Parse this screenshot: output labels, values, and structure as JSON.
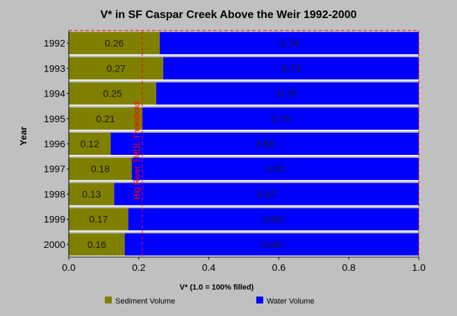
{
  "chart_data": {
    "type": "bar",
    "orientation": "horizontal",
    "stacked": true,
    "title": "V* in SF Caspar Creek Above the Weir 1992-2000",
    "xlabel": "V* (1.0 = 100% filled)",
    "ylabel": "Year",
    "xlim": [
      0,
      1.0
    ],
    "xticks": [
      "0.0",
      "0.2",
      "0.4",
      "0.6",
      "0.8",
      "1.0"
    ],
    "categories": [
      "1992",
      "1993",
      "1994",
      "1995",
      "1996",
      "1997",
      "1998",
      "1999",
      "2000"
    ],
    "series": [
      {
        "name": "Sediment Volume",
        "color": "#808000",
        "values": [
          0.26,
          0.27,
          0.25,
          0.21,
          0.12,
          0.18,
          0.13,
          0.17,
          0.16
        ],
        "labels": [
          "0.26",
          "0.27",
          "0.25",
          "0.21",
          "0.12",
          "0.18",
          "0.13",
          "0.17",
          "0.16"
        ]
      },
      {
        "name": "Water Volume",
        "color": "#0000ff",
        "values": [
          0.74,
          0.73,
          0.75,
          0.79,
          0.88,
          0.82,
          0.87,
          0.83,
          0.84
        ],
        "labels": [
          "0.74",
          "0.73",
          "0.75",
          "0.79",
          "0.88",
          "0.82",
          "0.87",
          "0.83",
          "0.84"
        ]
      }
    ],
    "threshold": {
      "value": 0.21,
      "label": "Big River TMDL Threshold",
      "color": "#ff0000"
    },
    "legend_position": "bottom",
    "grid": false
  }
}
